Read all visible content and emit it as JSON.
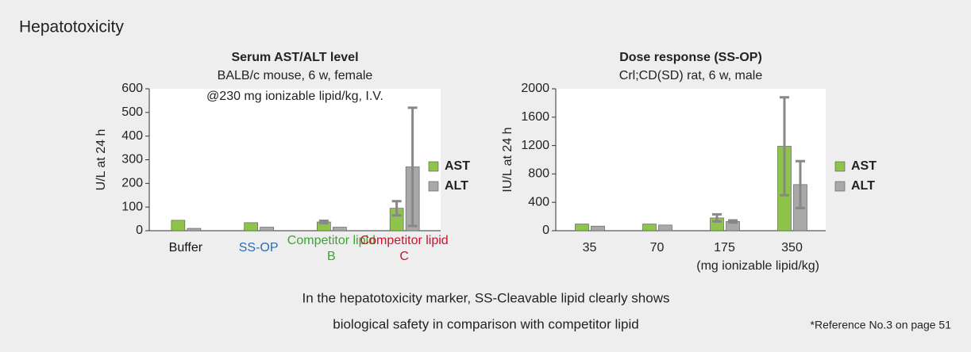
{
  "heading": "Hepatotoxicity",
  "chart_data": [
    {
      "type": "bar",
      "title": "Serum AST/ALT level",
      "subtitle": "BALB/c mouse, 6 w, female",
      "annotation": "@230 mg ionizable lipid/kg, I.V.",
      "y_label": "U/L at 24 h",
      "categories": [
        "Buffer",
        "SS-OP",
        "Competitor lipid B",
        "Competitor lipid C"
      ],
      "category_colors": [
        "#111111",
        "#2a6db5",
        "#3aa635",
        "#d0112b"
      ],
      "series": [
        {
          "name": "AST",
          "color": "#8dc449",
          "values": [
            44,
            34,
            37,
            95
          ],
          "errors": [
            null,
            null,
            5,
            30
          ]
        },
        {
          "name": "ALT",
          "color": "#a9a9a9",
          "values": [
            10,
            15,
            15,
            270
          ],
          "errors": [
            null,
            null,
            null,
            250
          ]
        }
      ],
      "ylim": [
        0,
        600
      ],
      "yticks": [
        0,
        100,
        200,
        300,
        400,
        500,
        600
      ]
    },
    {
      "type": "bar",
      "title": "Dose response (SS-OP)",
      "subtitle": "Crl;CD(SD) rat, 6 w, male",
      "y_label": "IU/L at 24 h",
      "x_label": "(mg ionizable lipid/kg)",
      "categories": [
        "35",
        "70",
        "175",
        "350"
      ],
      "series": [
        {
          "name": "AST",
          "color": "#8dc449",
          "values": [
            95,
            95,
            180,
            1190
          ],
          "errors": [
            null,
            null,
            50,
            690
          ]
        },
        {
          "name": "ALT",
          "color": "#a9a9a9",
          "values": [
            65,
            80,
            130,
            650
          ],
          "errors": [
            null,
            null,
            15,
            330
          ]
        }
      ],
      "ylim": [
        0,
        2000
      ],
      "yticks": [
        0,
        400,
        800,
        1200,
        1600,
        2000
      ]
    }
  ],
  "caption": [
    "In the hepatotoxicity marker, SS-Cleavable lipid clearly shows",
    "biological safety in comparison with competitor lipid"
  ],
  "footnote": "*Reference No.3 on page 51"
}
